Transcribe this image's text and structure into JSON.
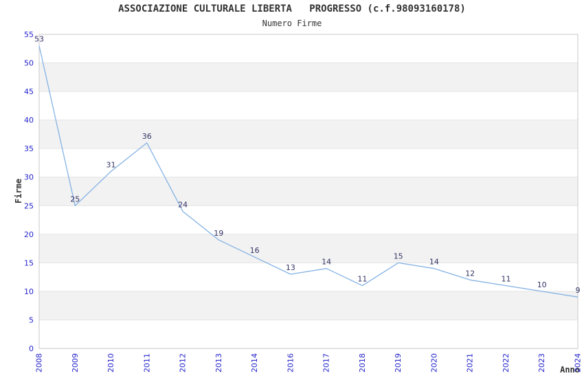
{
  "title": "ASSOCIAZIONE CULTURALE LIBERTA   PROGRESSO (c.f.98093160178)",
  "subtitle": "Numero Firme",
  "chart_data": {
    "type": "line",
    "title": "ASSOCIAZIONE CULTURALE LIBERTA   PROGRESSO (c.f.98093160178)",
    "subtitle": "Numero Firme",
    "xlabel": "Anno",
    "ylabel": "Firme",
    "categories": [
      "2008",
      "2009",
      "2010",
      "2011",
      "2012",
      "2013",
      "2014",
      "2016",
      "2017",
      "2018",
      "2019",
      "2020",
      "2021",
      "2022",
      "2023",
      "2024"
    ],
    "values": [
      53,
      25,
      31,
      36,
      24,
      19,
      16,
      13,
      14,
      11,
      15,
      14,
      12,
      11,
      10,
      9
    ],
    "ylim": [
      0,
      55
    ],
    "yticks": [
      0,
      5,
      10,
      15,
      20,
      25,
      30,
      35,
      40,
      45,
      50,
      55
    ],
    "grid": "horizontal gridlines with alternating shaded bands",
    "legend": "none",
    "point_labels_visible": true,
    "x_tick_rotation_degrees": 90
  },
  "colors": {
    "line": "#84b2e4",
    "point_label": "#333366",
    "tick_label": "#2525cc",
    "axis_title": "#333333",
    "title_text": "#333333",
    "band": "#f2f2f2",
    "gridline": "#e4e4e4",
    "border": "#c9c9c9",
    "background": "#ffffff"
  }
}
